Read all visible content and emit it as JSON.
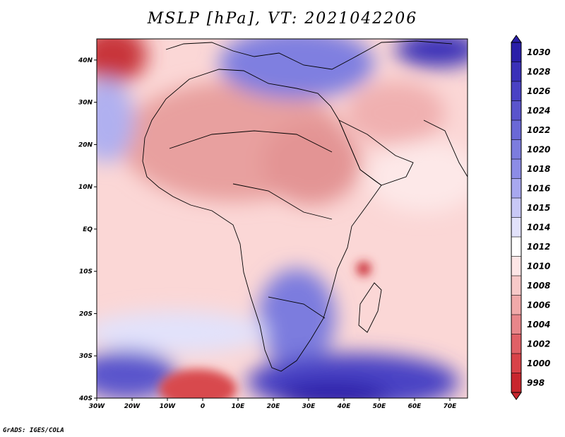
{
  "title": "MSLP [hPa], VT: 2021042206",
  "credit": "GrADS: IGES/COLA",
  "colors": {
    "low_core": "#c8262e",
    "low": "#e8868a",
    "mid": "#f7c9c8",
    "neutral": "#ffffff",
    "high": "#8c8ce6",
    "high_core": "#2a1ea8"
  },
  "chart_data": {
    "type": "heatmap",
    "title": "MSLP [hPa], VT: 2021042206",
    "variable": "MSLP",
    "units": "hPa",
    "valid_time": "2021042206",
    "x_ticks": [
      "30W",
      "20W",
      "10W",
      "0",
      "10E",
      "20E",
      "30E",
      "40E",
      "50E",
      "60E",
      "70E"
    ],
    "y_ticks": [
      "40N",
      "30N",
      "20N",
      "10N",
      "EQ",
      "10S",
      "20S",
      "30S",
      "40S"
    ],
    "lon_range": [
      -30,
      75
    ],
    "lat_range": [
      -40,
      45
    ],
    "colorbar": {
      "levels": [
        998,
        1000,
        1002,
        1004,
        1006,
        1008,
        1010,
        1012,
        1014,
        1015,
        1016,
        1018,
        1020,
        1022,
        1024,
        1026,
        1028,
        1030
      ],
      "labels": [
        "1030",
        "1028",
        "1026",
        "1024",
        "1022",
        "1020",
        "1018",
        "1016",
        "1015",
        "1014",
        "1012",
        "1010",
        "1008",
        "1006",
        "1004",
        "1002",
        "1000",
        "998"
      ],
      "colors": [
        "#2a1ea8",
        "#3a30b8",
        "#4a42c4",
        "#5a54cc",
        "#6a68d6",
        "#7c7cde",
        "#8c8ce6",
        "#a8a8ef",
        "#c8c8f6",
        "#e2e2fb",
        "#ffffff",
        "#fde6e6",
        "#f7c9c8",
        "#f0a9a9",
        "#e8868a",
        "#e06066",
        "#d84248",
        "#c8262e"
      ]
    }
  }
}
